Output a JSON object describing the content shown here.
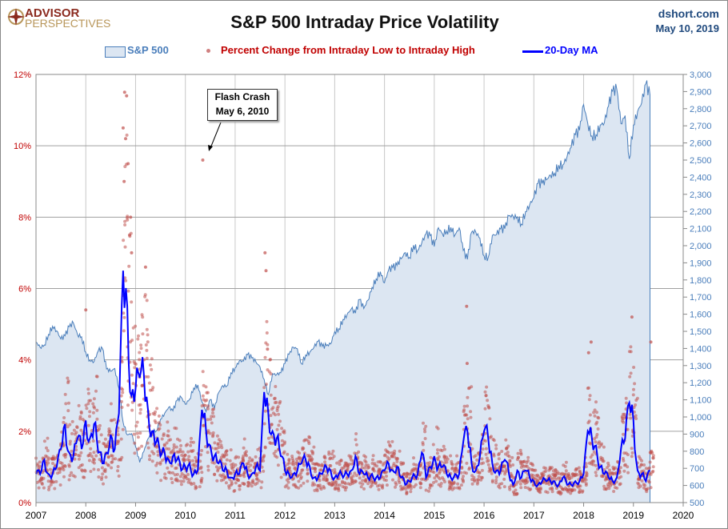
{
  "header": {
    "logo_line1": "ADVISOR",
    "logo_line2": "PERSPECTIVES",
    "site": "dshort.com",
    "date": "May 10, 2019"
  },
  "annotation": {
    "line1": "Flash Crash",
    "line2": "May 6, 2010"
  },
  "colors": {
    "area_fill": "#dce6f2",
    "area_line": "#4a7ebb",
    "scatter": "#c0504d",
    "ma": "#0000ff",
    "left_axis": "#c00000",
    "right_axis": "#4a7ebb"
  },
  "chart_data": {
    "type": "area+scatter+line",
    "title": "S&P 500 Intraday Price Volatility",
    "legend": [
      "S&P 500",
      "Percent Change from Intraday Low to Intraday High",
      "20-Day MA"
    ],
    "legend_placement": "top",
    "x_ticks": [
      "2007",
      "2008",
      "2009",
      "2010",
      "2011",
      "2012",
      "2013",
      "2014",
      "2015",
      "2016",
      "2017",
      "2018",
      "2019",
      "2020"
    ],
    "x_range": [
      2007,
      2020
    ],
    "left_ticks": [
      "0%",
      "2%",
      "4%",
      "6%",
      "8%",
      "10%",
      "12%"
    ],
    "left_range": [
      0,
      12
    ],
    "right_ticks": [
      "500",
      "600",
      "700",
      "800",
      "900",
      "1,000",
      "1,100",
      "1,200",
      "1,300",
      "1,400",
      "1,500",
      "1,600",
      "1,700",
      "1,800",
      "1,900",
      "2,000",
      "2,100",
      "2,200",
      "2,300",
      "2,400",
      "2,500",
      "2,600",
      "2,700",
      "2,800",
      "2,900",
      "3,000"
    ],
    "right_range": [
      500,
      3000
    ],
    "sp500_monthly_start": 2007,
    "sp500_monthly": [
      1438,
      1406,
      1420,
      1482,
      1530,
      1503,
      1455,
      1474,
      1527,
      1549,
      1481,
      1468,
      1378,
      1330,
      1323,
      1386,
      1400,
      1280,
      1267,
      1283,
      1166,
      969,
      896,
      903,
      826,
      735,
      798,
      873,
      919,
      919,
      987,
      1021,
      1057,
      1036,
      1096,
      1115,
      1074,
      1104,
      1169,
      1187,
      1089,
      1031,
      1102,
      1049,
      1141,
      1183,
      1181,
      1258,
      1286,
      1327,
      1326,
      1364,
      1345,
      1321,
      1292,
      1219,
      1131,
      1253,
      1247,
      1258,
      1312,
      1366,
      1408,
      1398,
      1310,
      1362,
      1379,
      1407,
      1441,
      1412,
      1416,
      1426,
      1498,
      1515,
      1569,
      1598,
      1631,
      1606,
      1686,
      1633,
      1682,
      1757,
      1806,
      1848,
      1783,
      1859,
      1872,
      1884,
      1924,
      1960,
      1931,
      2003,
      1972,
      2018,
      2068,
      2059,
      1995,
      2105,
      2068,
      2086,
      2107,
      2063,
      2104,
      1972,
      1920,
      2079,
      2080,
      2044,
      1940,
      1932,
      2060,
      2065,
      2097,
      2099,
      2174,
      2171,
      2168,
      2126,
      2199,
      2239,
      2279,
      2364,
      2363,
      2384,
      2412,
      2423,
      2470,
      2472,
      2519,
      2575,
      2648,
      2674,
      2824,
      2714,
      2641,
      2648,
      2705,
      2718,
      2816,
      2902,
      2914,
      2712,
      2760,
      2507,
      2704,
      2784,
      2834,
      2946,
      2881
    ],
    "ma20_monthly_pct": [
      0.8,
      0.8,
      1.2,
      0.8,
      0.8,
      1.0,
      1.5,
      2.2,
      1.4,
      1.3,
      1.8,
      1.5,
      2.3,
      1.8,
      2.2,
      1.4,
      1.1,
      1.4,
      1.9,
      1.5,
      2.5,
      6.5,
      5.5,
      3.0,
      3.2,
      3.5,
      3.6,
      2.6,
      2.0,
      1.7,
      1.3,
      1.4,
      1.2,
      1.3,
      1.2,
      0.9,
      1.0,
      1.1,
      0.8,
      0.9,
      2.6,
      2.0,
      1.6,
      1.3,
      1.1,
      0.9,
      0.9,
      0.7,
      0.8,
      0.8,
      1.1,
      0.8,
      0.8,
      1.0,
      0.9,
      3.1,
      2.5,
      2.0,
      1.8,
      1.3,
      0.9,
      0.8,
      0.8,
      0.9,
      1.1,
      1.2,
      1.0,
      0.7,
      0.7,
      0.8,
      1.0,
      0.9,
      0.7,
      0.8,
      0.7,
      0.8,
      0.9,
      1.3,
      0.8,
      0.8,
      0.7,
      0.8,
      0.7,
      0.7,
      0.9,
      1.1,
      0.9,
      1.0,
      0.7,
      0.5,
      0.6,
      0.8,
      0.8,
      1.4,
      0.7,
      1.0,
      1.3,
      1.0,
      1.0,
      0.8,
      0.7,
      0.8,
      0.8,
      1.7,
      2.0,
      1.1,
      0.9,
      1.3,
      2.0,
      1.8,
      1.1,
      0.9,
      0.9,
      1.2,
      0.8,
      0.5,
      0.9,
      0.7,
      0.9,
      0.7,
      0.6,
      0.5,
      0.6,
      0.6,
      0.6,
      0.6,
      0.5,
      0.7,
      0.5,
      0.5,
      0.6,
      0.6,
      0.8,
      2.0,
      1.8,
      1.6,
      1.0,
      0.8,
      0.7,
      0.6,
      0.7,
      1.5,
      1.8,
      2.8,
      2.3,
      0.9,
      0.8,
      0.6,
      0.9
    ],
    "scatter_outliers": [
      [
        2008.78,
        11.5
      ],
      [
        2008.82,
        11.4
      ],
      [
        2008.75,
        10.5
      ],
      [
        2008.8,
        10.2
      ],
      [
        2008.85,
        9.5
      ],
      [
        2008.77,
        9.0
      ],
      [
        2008.9,
        8.0
      ],
      [
        2008.88,
        7.5
      ],
      [
        2008.92,
        7.0
      ],
      [
        2009.2,
        6.6
      ],
      [
        2010.35,
        9.6
      ],
      [
        2011.6,
        7.0
      ],
      [
        2011.62,
        6.5
      ],
      [
        2011.65,
        4.3
      ],
      [
        2015.65,
        5.5
      ],
      [
        2015.66,
        3.9
      ],
      [
        2018.1,
        4.2
      ],
      [
        2018.15,
        4.5
      ],
      [
        2018.97,
        5.2
      ],
      [
        2019.35,
        4.5
      ],
      [
        2008.0,
        5.4
      ]
    ]
  }
}
